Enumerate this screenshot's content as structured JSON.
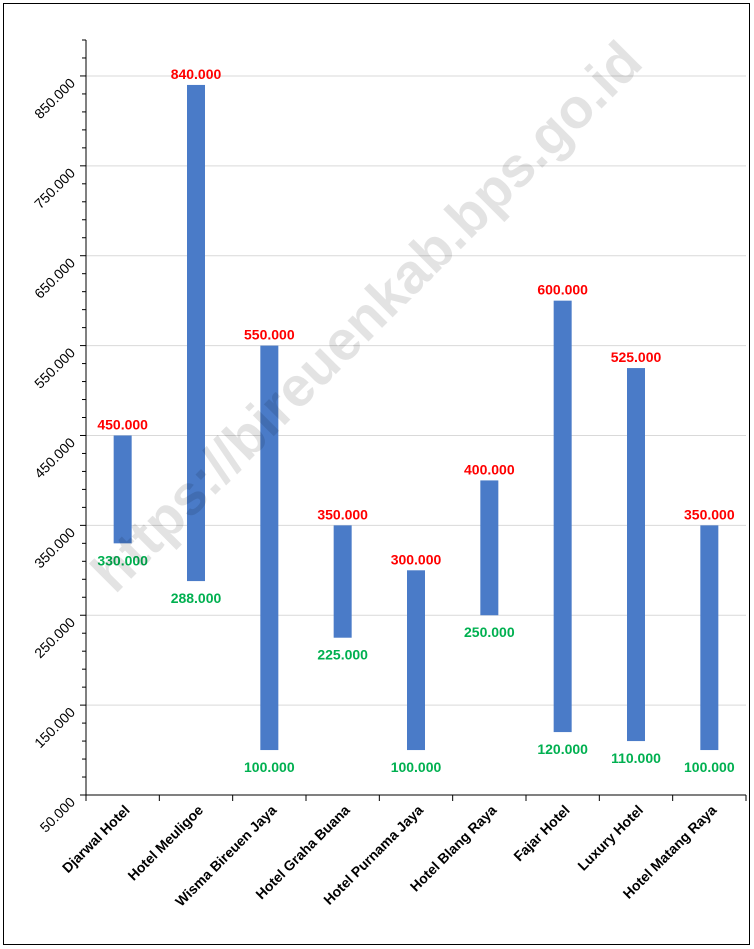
{
  "chart_data": {
    "type": "bar",
    "subtype": "floating-range",
    "categories": [
      "Djarwal Hotel",
      "Hotel Meuligoe",
      "Wisma Bireuen Jaya",
      "Hotel Graha Buana",
      "Hotel Purnama Jaya",
      "Hotel Blang Raya",
      "Fajar Hotel",
      "Luxury Hotel",
      "Hotel Matang Raya"
    ],
    "series": [
      {
        "values_high": [
          450000,
          840000,
          550000,
          350000,
          300000,
          400000,
          600000,
          525000,
          350000
        ],
        "values_low": [
          330000,
          288000,
          100000,
          225000,
          100000,
          250000,
          120000,
          110000,
          100000
        ]
      }
    ],
    "high_labels": [
      "450.000",
      "840.000",
      "550.000",
      "350.000",
      "300.000",
      "400.000",
      "600.000",
      "525.000",
      "350.000"
    ],
    "low_labels": [
      "330.000",
      "288.000",
      "100.000",
      "225.000",
      "100.000",
      "250.000",
      "120.000",
      "110.000",
      "100.000"
    ],
    "y_ticks": [
      50000,
      150000,
      250000,
      350000,
      450000,
      550000,
      650000,
      750000,
      850000
    ],
    "y_tick_labels": [
      "50.000",
      "150.000",
      "250.000",
      "350.000",
      "450.000",
      "550.000",
      "650.000",
      "750.000",
      "850.000"
    ],
    "ylim": [
      50000,
      850000
    ],
    "grid": true,
    "colors": {
      "bar": "#4a7bc8",
      "high_label": "#ff0000",
      "low_label": "#00b050",
      "grid": "#d9d9d9"
    }
  },
  "watermark": "https://bireuenkab.bps.go.id"
}
